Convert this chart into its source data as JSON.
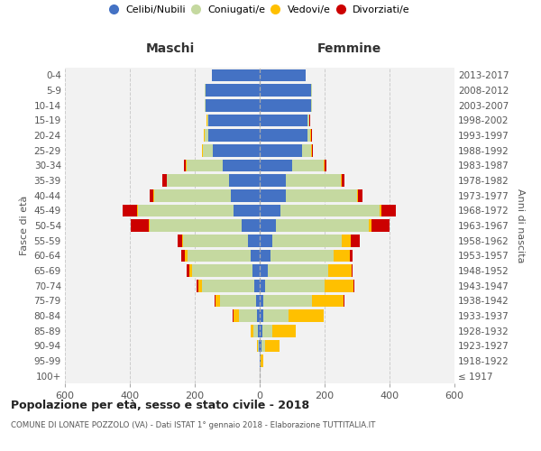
{
  "age_groups": [
    "100+",
    "95-99",
    "90-94",
    "85-89",
    "80-84",
    "75-79",
    "70-74",
    "65-69",
    "60-64",
    "55-59",
    "50-54",
    "45-49",
    "40-44",
    "35-39",
    "30-34",
    "25-29",
    "20-24",
    "15-19",
    "10-14",
    "5-9",
    "0-4"
  ],
  "birth_years": [
    "≤ 1917",
    "1918-1922",
    "1923-1927",
    "1928-1932",
    "1933-1937",
    "1938-1942",
    "1943-1947",
    "1948-1952",
    "1953-1957",
    "1958-1962",
    "1963-1967",
    "1968-1972",
    "1973-1977",
    "1978-1982",
    "1983-1987",
    "1988-1992",
    "1993-1997",
    "1998-2002",
    "2003-2007",
    "2008-2012",
    "2013-2017"
  ],
  "colors": {
    "celibe": "#4472c4",
    "coniugato": "#c5d9a0",
    "vedovo": "#ffc000",
    "divorziato": "#cc0000"
  },
  "males": {
    "celibe": [
      1,
      1,
      2,
      5,
      8,
      12,
      18,
      22,
      28,
      35,
      55,
      80,
      90,
      95,
      115,
      145,
      158,
      158,
      168,
      168,
      148
    ],
    "coniugato": [
      0,
      0,
      4,
      15,
      55,
      110,
      160,
      185,
      195,
      200,
      285,
      295,
      235,
      190,
      110,
      30,
      12,
      4,
      2,
      2,
      0
    ],
    "vedovo": [
      0,
      0,
      2,
      8,
      18,
      15,
      12,
      10,
      8,
      5,
      3,
      2,
      2,
      2,
      2,
      2,
      2,
      1,
      0,
      0,
      0
    ],
    "divorziato": [
      0,
      0,
      0,
      0,
      2,
      3,
      5,
      8,
      10,
      12,
      55,
      45,
      12,
      12,
      5,
      2,
      1,
      1,
      0,
      0,
      0
    ]
  },
  "females": {
    "nubile": [
      1,
      2,
      5,
      8,
      10,
      12,
      18,
      25,
      32,
      38,
      50,
      65,
      80,
      80,
      100,
      130,
      148,
      148,
      158,
      158,
      142
    ],
    "coniugata": [
      0,
      2,
      12,
      30,
      80,
      148,
      182,
      185,
      195,
      215,
      285,
      305,
      220,
      170,
      98,
      28,
      8,
      4,
      2,
      2,
      0
    ],
    "vedova": [
      0,
      8,
      45,
      72,
      108,
      98,
      88,
      72,
      52,
      28,
      10,
      4,
      2,
      2,
      2,
      2,
      2,
      2,
      1,
      1,
      0
    ],
    "divorziata": [
      0,
      0,
      0,
      0,
      0,
      2,
      3,
      5,
      8,
      28,
      55,
      45,
      15,
      10,
      5,
      3,
      2,
      1,
      0,
      0,
      0
    ]
  },
  "title": "Popolazione per età, sesso e stato civile - 2018",
  "subtitle": "COMUNE DI LONATE POZZOLO (VA) - Dati ISTAT 1° gennaio 2018 - Elaborazione TUTTITALIA.IT",
  "label_maschi": "Maschi",
  "label_femmine": "Femmine",
  "ylabel_left": "Fasce di età",
  "ylabel_right": "Anni di nascita",
  "xlim": 600,
  "bg_color": "#f2f2f2",
  "grid_color": "#cccccc",
  "legend_labels": [
    "Celibi/Nubili",
    "Coniugati/e",
    "Vedovi/e",
    "Divorziati/e"
  ]
}
